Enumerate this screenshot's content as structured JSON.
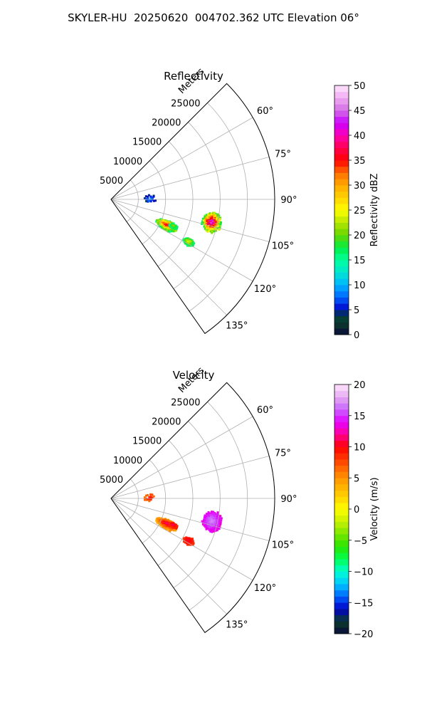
{
  "title": "SKYLER-HU  20250620  004702.362 UTC Elevation 06°",
  "chart_data": [
    {
      "type": "heatmap",
      "title": "Reflectivity",
      "projection": "polar sector",
      "radial_label": "Meters",
      "radial_ticks": [
        "5000",
        "10000",
        "15000",
        "20000",
        "25000"
      ],
      "radial_tick_values": [
        5000,
        10000,
        15000,
        20000,
        25000
      ],
      "radial_max": 30000,
      "azimuth_range": [
        45,
        145
      ],
      "azimuth_ticks": [
        "60°",
        "75°",
        "90°",
        "105°",
        "120°",
        "135°"
      ],
      "azimuth_tick_values": [
        60,
        75,
        90,
        105,
        120,
        135
      ],
      "grid": true,
      "colorbar": {
        "label": "Reflectivity dBZ",
        "min": 0,
        "max": 50,
        "ticks": [
          "0",
          "5",
          "10",
          "15",
          "20",
          "25",
          "30",
          "35",
          "40",
          "45",
          "50"
        ],
        "tick_values": [
          0,
          5,
          10,
          15,
          20,
          25,
          30,
          35,
          40,
          45,
          50
        ]
      },
      "echoes": [
        {
          "range": [
            9000,
            13000
          ],
          "azimuth": [
            110,
            119
          ],
          "value_range": [
            15,
            38
          ]
        },
        {
          "range": [
            17000,
            20500
          ],
          "azimuth": [
            97,
            108
          ],
          "value_range": [
            15,
            45
          ]
        },
        {
          "range": [
            11500,
            13000
          ],
          "azimuth": [
            111,
            115
          ],
          "value_range": [
            15,
            22
          ]
        },
        {
          "range": [
            15000,
            17000
          ],
          "azimuth": [
            116,
            121
          ],
          "value_range": [
            15,
            25
          ]
        },
        {
          "range": [
            6000,
            8000
          ],
          "azimuth": [
            82,
            94
          ],
          "value_range": [
            3,
            10
          ]
        }
      ]
    },
    {
      "type": "heatmap",
      "title": "Velocity",
      "projection": "polar sector",
      "radial_label": "Meters",
      "radial_ticks": [
        "5000",
        "10000",
        "15000",
        "20000",
        "25000"
      ],
      "radial_tick_values": [
        5000,
        10000,
        15000,
        20000,
        25000
      ],
      "radial_max": 30000,
      "azimuth_range": [
        45,
        145
      ],
      "azimuth_ticks": [
        "60°",
        "75°",
        "90°",
        "105°",
        "120°",
        "135°"
      ],
      "azimuth_tick_values": [
        60,
        75,
        90,
        105,
        120,
        135
      ],
      "grid": true,
      "colorbar": {
        "label": "Velocity (m/s)",
        "min": -20,
        "max": 20,
        "ticks": [
          "−20",
          "−15",
          "−10",
          "−5",
          "0",
          "5",
          "10",
          "15",
          "20"
        ],
        "tick_values": [
          -20,
          -15,
          -10,
          -5,
          0,
          5,
          10,
          15,
          20
        ]
      },
      "echoes": [
        {
          "range": [
            9000,
            13000
          ],
          "azimuth": [
            110,
            119
          ],
          "value_range": [
            3,
            12
          ]
        },
        {
          "range": [
            17000,
            20500
          ],
          "azimuth": [
            97,
            108
          ],
          "value_range": [
            13,
            17
          ]
        },
        {
          "range": [
            11500,
            13000
          ],
          "azimuth": [
            111,
            115
          ],
          "value_range": [
            8,
            12
          ]
        },
        {
          "range": [
            15000,
            17000
          ],
          "azimuth": [
            116,
            121
          ],
          "value_range": [
            8,
            11
          ]
        },
        {
          "range": [
            6000,
            8000
          ],
          "azimuth": [
            82,
            94
          ],
          "value_range": [
            5,
            11
          ]
        }
      ]
    }
  ]
}
